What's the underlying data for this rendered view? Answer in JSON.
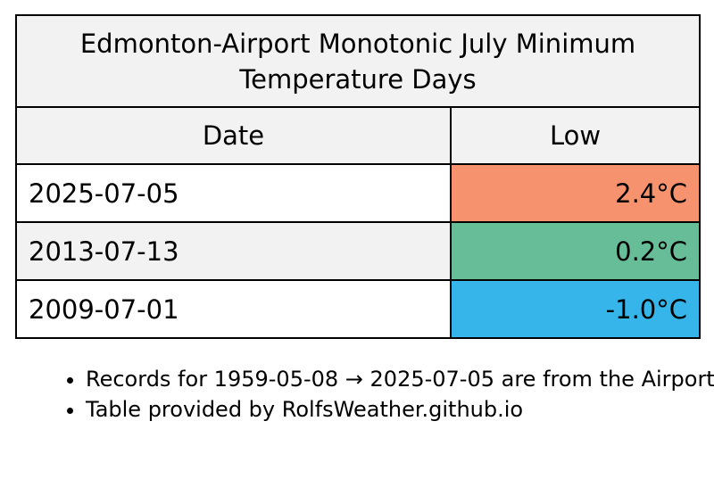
{
  "table": {
    "title": "Edmonton-Airport Monotonic July Minimum Temperature Days",
    "headers": {
      "date": "Date",
      "low": "Low"
    },
    "rows": [
      {
        "date": "2025-07-05",
        "low": "2.4°C",
        "color": "#f7926e"
      },
      {
        "date": "2013-07-13",
        "low": "0.2°C",
        "color": "#66bd98"
      },
      {
        "date": "2009-07-01",
        "low": "-1.0°C",
        "color": "#35b5e9"
      }
    ]
  },
  "notes": [
    "Records for 1959-05-08 → 2025-07-05 are from the Airport",
    "Table provided by RolfsWeather.github.io"
  ]
}
